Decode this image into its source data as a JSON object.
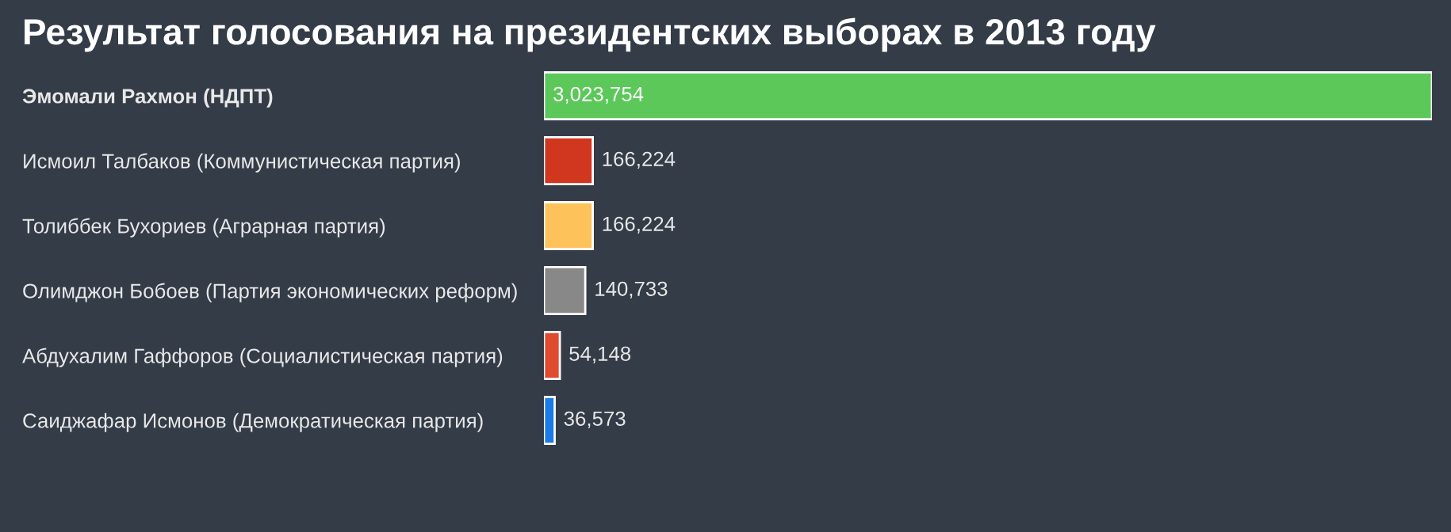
{
  "chart_data": {
    "type": "bar",
    "orientation": "horizontal",
    "title": "Результат голосования на президентских выборах в 2013 году",
    "categories": [
      "Эмомали Рахмон (НДПТ)",
      "Исмоил Талбаков (Коммунистическая партия)",
      "Толиббек Бухориев (Аграрная партия)",
      "Олимджон Бобоев (Партия экономических реформ)",
      "Абдухалим Гаффоров (Социалистическая партия)",
      "Саиджафар Исмонов (Демократическая партия)"
    ],
    "values": [
      3023754,
      166224,
      166224,
      140733,
      54148,
      36573
    ],
    "colors": [
      "#5cc85a",
      "#d1361f",
      "#fdc35a",
      "#888888",
      "#e04a2e",
      "#1a7ae8"
    ],
    "value_labels": [
      "3,023,754",
      "166,224",
      "166,224",
      "140,733",
      "54,148",
      "36,573"
    ],
    "grid": false,
    "legend": false
  }
}
